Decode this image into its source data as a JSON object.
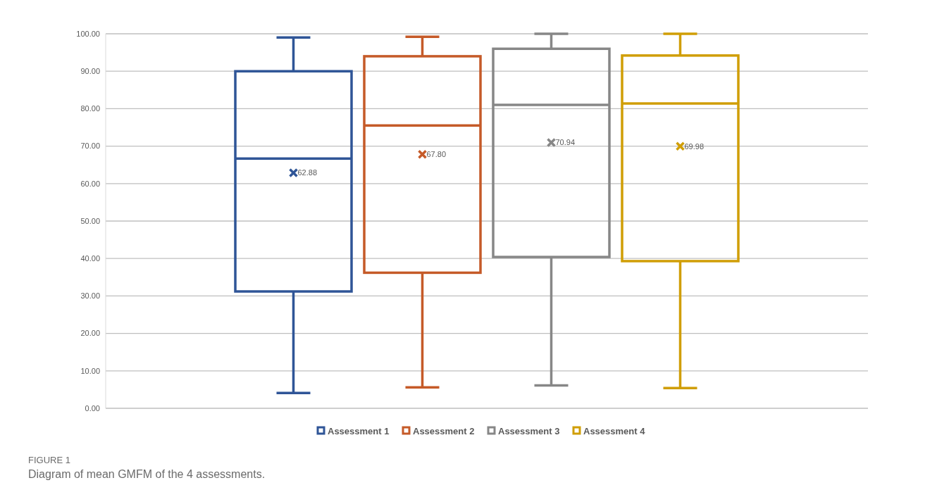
{
  "chart_data": {
    "type": "box",
    "title": "FIGURE 1",
    "subtitle": "Diagram of mean GMFM of the 4 assessments.",
    "categories": [
      null
    ],
    "series": [
      {
        "name": "Assessment 1",
        "color": "#2f5597",
        "boxes": [
          {
            "low": 4.1,
            "q1": 31.2,
            "median": 66.7,
            "q3": 90.0,
            "high": 99.0,
            "mean": 62.88
          }
        ],
        "value_labels": [
          "62.88"
        ]
      },
      {
        "name": "Assessment 2",
        "color": "#c55a28",
        "boxes": [
          {
            "low": 5.6,
            "q1": 36.2,
            "median": 75.5,
            "q3": 94.0,
            "high": 99.2,
            "mean": 67.8
          }
        ],
        "value_labels": [
          "67.80"
        ]
      },
      {
        "name": "Assessment 3",
        "color": "#878787",
        "boxes": [
          {
            "low": 6.1,
            "q1": 40.4,
            "median": 81.0,
            "q3": 96.0,
            "high": 100.0,
            "mean": 70.94
          }
        ],
        "value_labels": [
          "70.94"
        ]
      },
      {
        "name": "Assessment 4",
        "color": "#d09e06",
        "boxes": [
          {
            "low": 5.4,
            "q1": 39.3,
            "median": 81.4,
            "q3": 94.2,
            "high": 100.0,
            "mean": 69.98
          }
        ],
        "value_labels": [
          "69.98"
        ]
      }
    ],
    "ylim": [
      0,
      100
    ],
    "yticks": [
      {
        "value": 0,
        "label": "0.00"
      },
      {
        "value": 10,
        "label": "10.00"
      },
      {
        "value": 20,
        "label": "20.00"
      },
      {
        "value": 30,
        "label": "30.00"
      },
      {
        "value": 40,
        "label": "40.00"
      },
      {
        "value": 50,
        "label": "50.00"
      },
      {
        "value": 60,
        "label": "60.00"
      },
      {
        "value": 70,
        "label": "70.00"
      },
      {
        "value": 80,
        "label": "80.00"
      },
      {
        "value": 90,
        "label": "90.00"
      },
      {
        "value": 100,
        "label": "100.00"
      }
    ],
    "grid": "y",
    "legend": "bottom",
    "marker": "cross"
  }
}
